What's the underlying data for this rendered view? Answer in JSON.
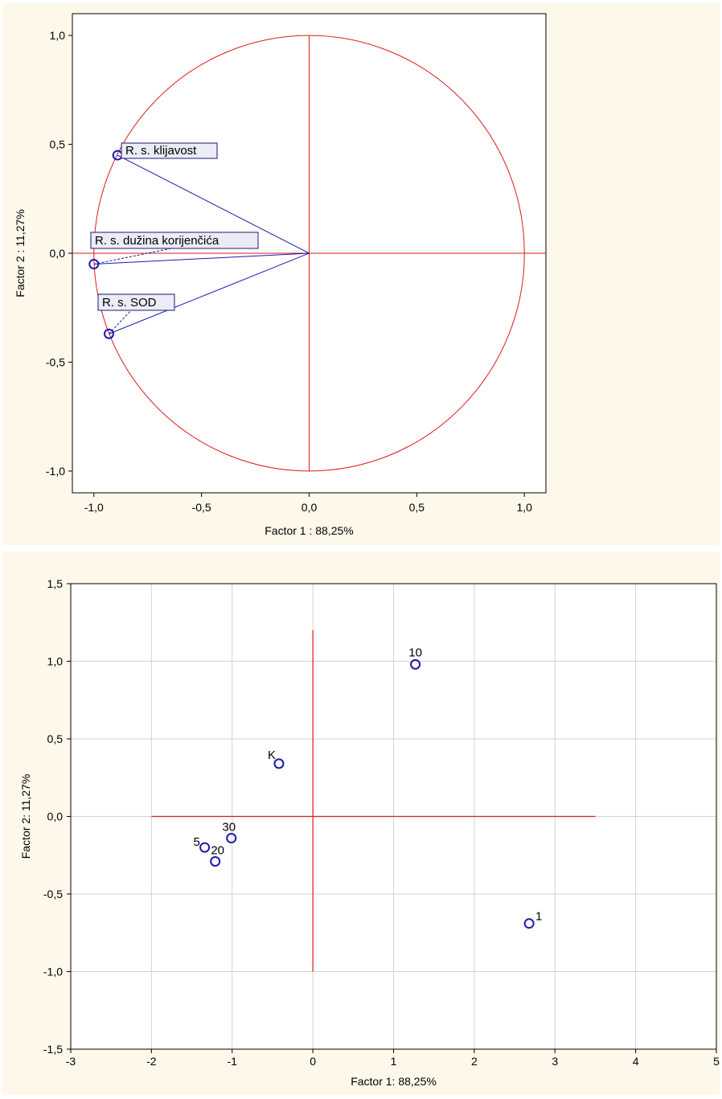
{
  "chart_data": [
    {
      "type": "scatter",
      "xlabel": "Factor 1 : 88,25%",
      "ylabel": "Factor 2 : 11,27%",
      "xlim": [
        -1.1,
        1.1
      ],
      "ylim": [
        -1.1,
        1.1
      ],
      "x_ticks": [
        "-1,0",
        "-0,5",
        "0,0",
        "0,5",
        "1,0"
      ],
      "y_ticks": [
        "1,0",
        "0,5",
        "0,0",
        "-0,5",
        "-1,0"
      ],
      "grid": false,
      "unit_circle": true,
      "points": [
        {
          "label": "R. s. klijavost",
          "x": -0.89,
          "y": 0.45
        },
        {
          "label": "R. s. dužina korijenčića",
          "x": -1.0,
          "y": -0.05
        },
        {
          "label": "R. s. SOD",
          "x": -0.93,
          "y": -0.37
        }
      ],
      "colors": {
        "circle": "#e0191b",
        "vectors": "#1a1ab0",
        "points": "#1a1ab0"
      }
    },
    {
      "type": "scatter",
      "xlabel": "Factor 1: 88,25%",
      "ylabel": "Factor 2: 11,27%",
      "xlim": [
        -3,
        5
      ],
      "ylim": [
        -1.5,
        1.5
      ],
      "x_ticks": [
        "-3",
        "-2",
        "-1",
        "0",
        "1",
        "2",
        "3",
        "4",
        "5"
      ],
      "y_ticks": [
        "1,5",
        "1,0",
        "0,5",
        "0,0",
        "-0,5",
        "-1,0",
        "-1,5"
      ],
      "grid": true,
      "points": [
        {
          "label": "10",
          "x": 1.27,
          "y": 0.98
        },
        {
          "label": "K",
          "x": -0.42,
          "y": 0.34
        },
        {
          "label": "30",
          "x": -1.01,
          "y": -0.14
        },
        {
          "label": "5",
          "x": -1.34,
          "y": -0.2
        },
        {
          "label": "20",
          "x": -1.21,
          "y": -0.29
        },
        {
          "label": "1",
          "x": 2.68,
          "y": -0.69
        }
      ],
      "colors": {
        "axes_lines": "#e0191b",
        "points": "#1a1ab0",
        "grid": "#d2d2d2"
      }
    }
  ]
}
